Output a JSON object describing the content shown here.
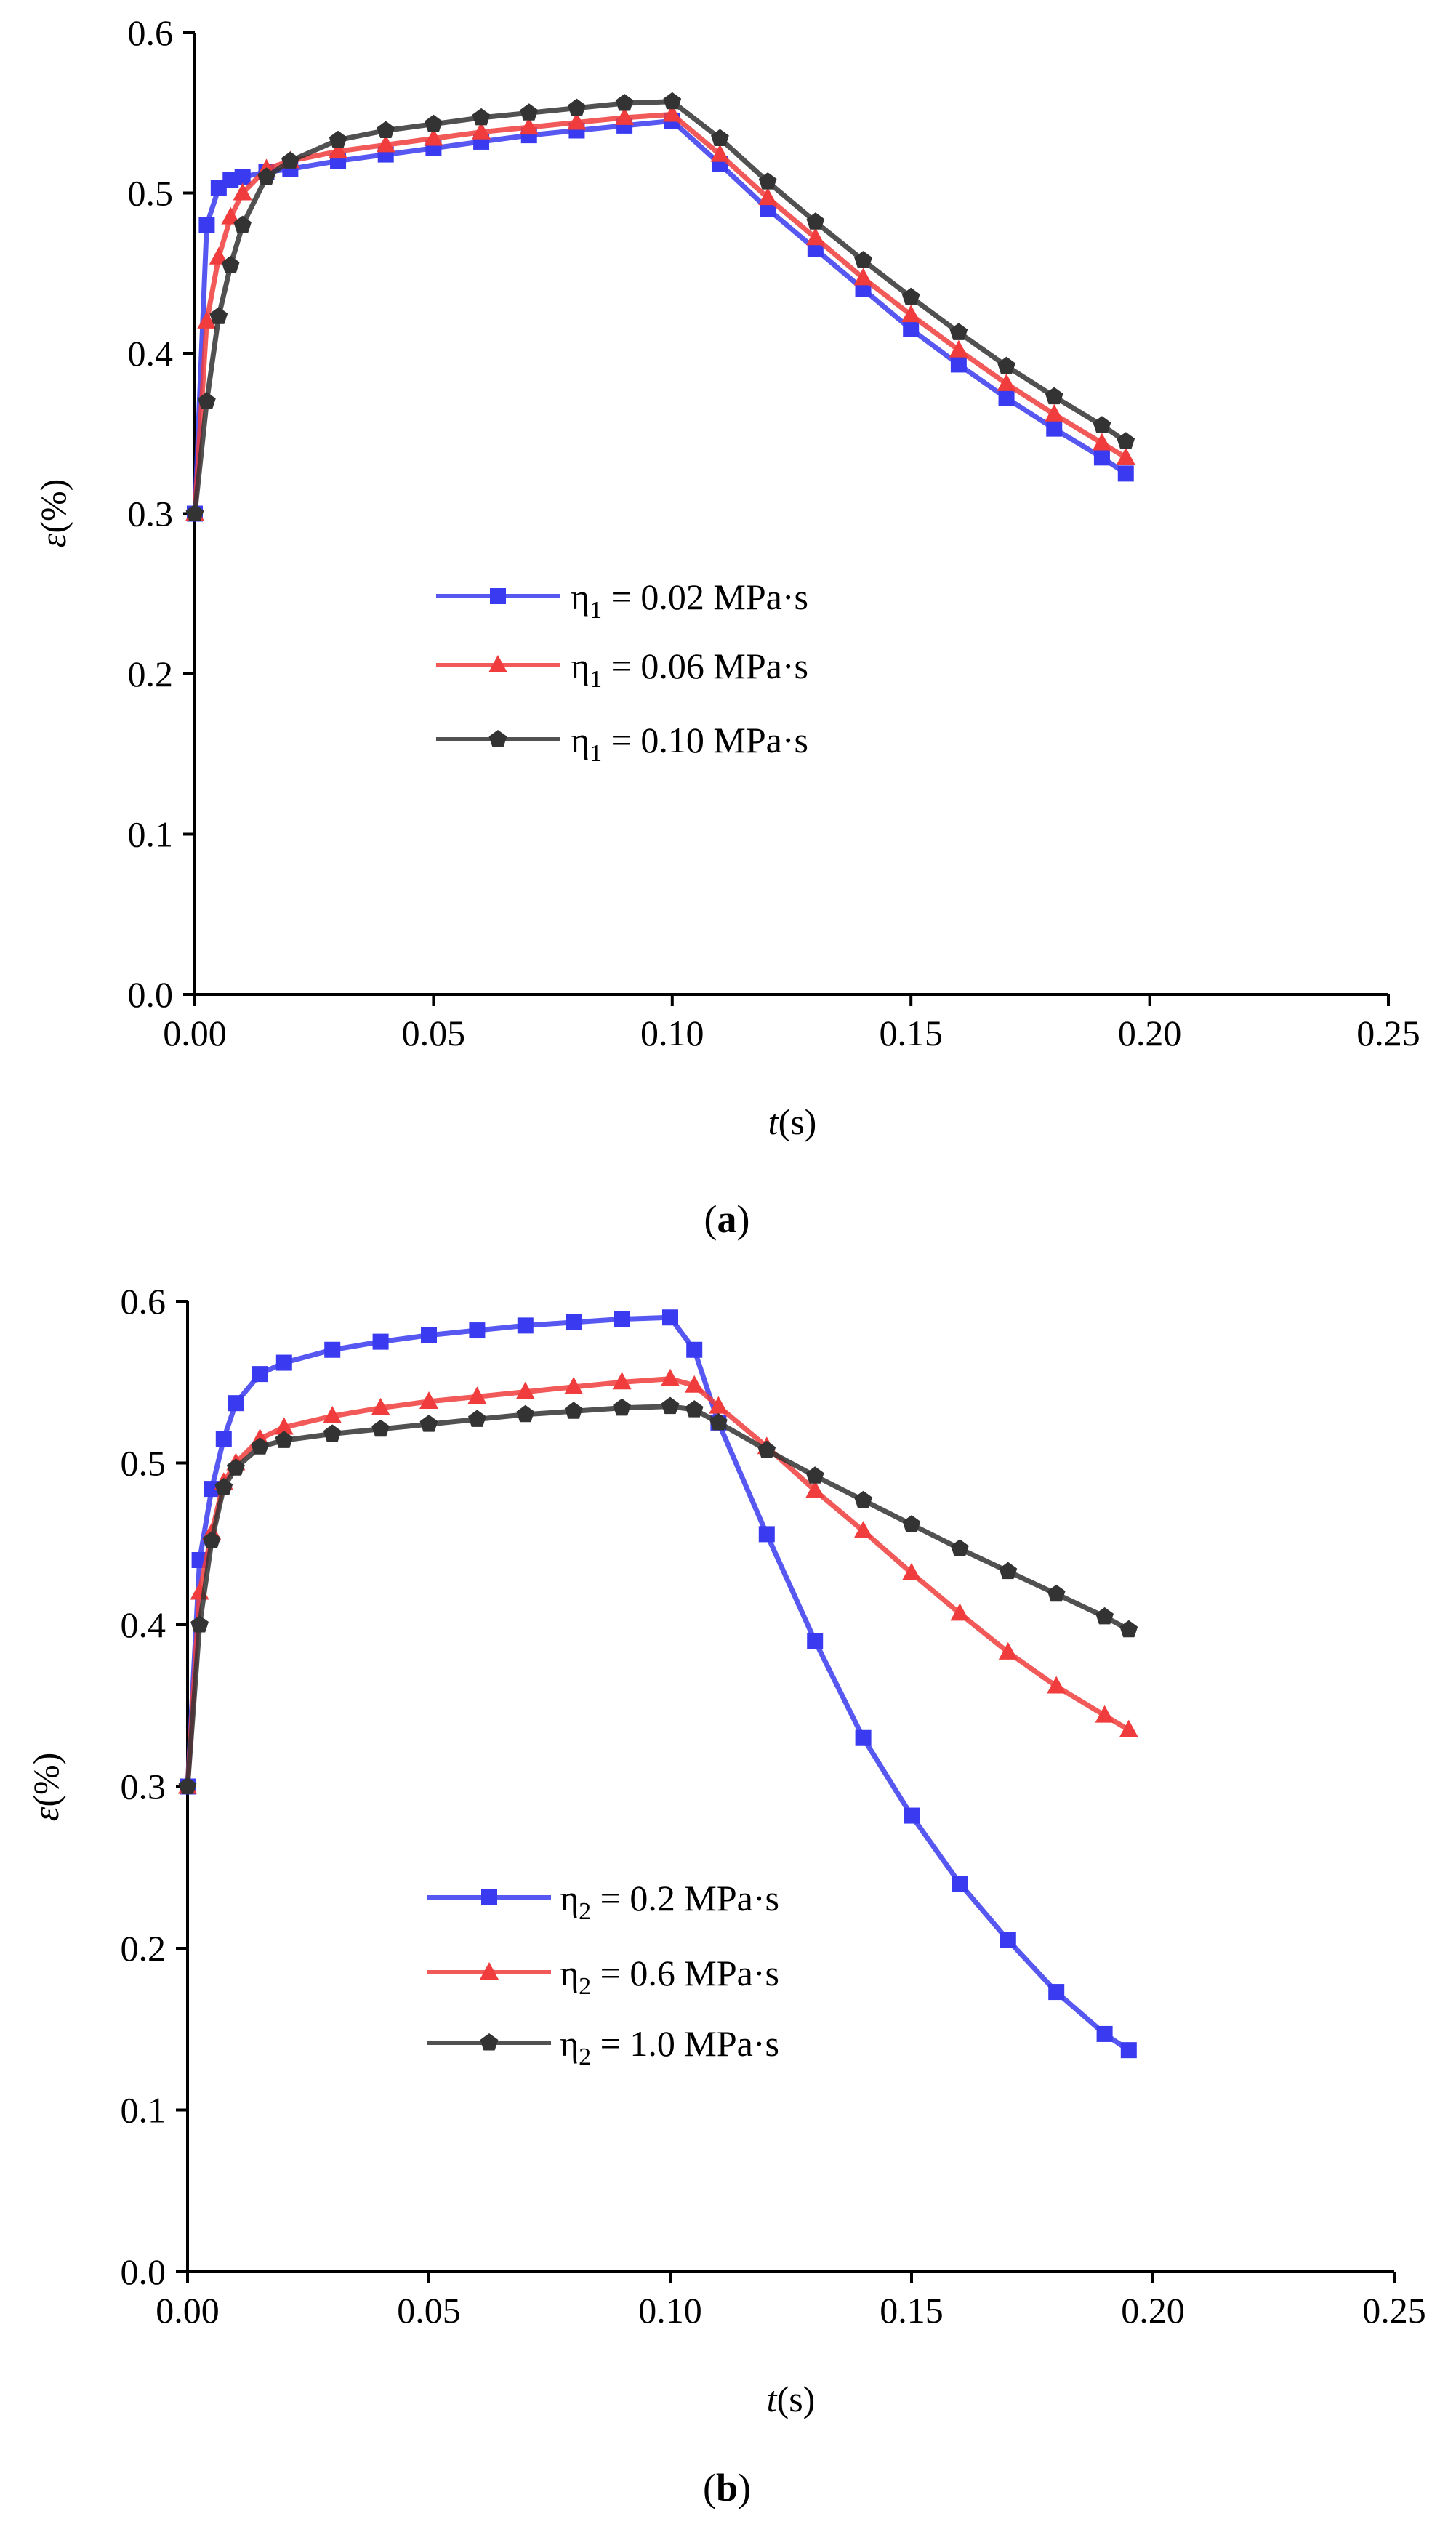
{
  "chart_data": [
    {
      "type": "line",
      "panel_label": "a",
      "xlabel_var": "t",
      "xlabel_unit": "(s)",
      "ylabel_var": "ε",
      "ylabel_unit": "(%)",
      "xlim": [
        0,
        0.25
      ],
      "ylim": [
        0,
        0.6
      ],
      "xticks": [
        "0.00",
        "0.05",
        "0.10",
        "0.15",
        "0.20",
        "0.25"
      ],
      "yticks": [
        "0.0",
        "0.1",
        "0.2",
        "0.3",
        "0.4",
        "0.5",
        "0.6"
      ],
      "legend_position": "center-left",
      "series": [
        {
          "name": "η1 = 0.02 MPa·s",
          "label_symbol": "η",
          "label_sub": "1",
          "label_text": " = 0.02 MPa·s",
          "color": "#3a3af0",
          "marker": "square",
          "x": [
            0,
            0.0025,
            0.005,
            0.0075,
            0.01,
            0.015,
            0.02,
            0.03,
            0.04,
            0.05,
            0.06,
            0.07,
            0.08,
            0.09,
            0.1,
            0.11,
            0.12,
            0.13,
            0.14,
            0.15,
            0.16,
            0.17,
            0.18,
            0.19,
            0.195
          ],
          "y": [
            0.3,
            0.48,
            0.503,
            0.508,
            0.51,
            0.513,
            0.515,
            0.52,
            0.524,
            0.528,
            0.532,
            0.536,
            0.539,
            0.542,
            0.545,
            0.518,
            0.49,
            0.465,
            0.44,
            0.415,
            0.393,
            0.372,
            0.353,
            0.335,
            0.325
          ]
        },
        {
          "name": "η1 = 0.06 MPa·s",
          "label_symbol": "η",
          "label_sub": "1",
          "label_text": " = 0.06 MPa·s",
          "color": "#f03c3c",
          "marker": "triangle",
          "x": [
            0,
            0.0025,
            0.005,
            0.0075,
            0.01,
            0.015,
            0.02,
            0.03,
            0.04,
            0.05,
            0.06,
            0.07,
            0.08,
            0.09,
            0.1,
            0.11,
            0.12,
            0.13,
            0.14,
            0.15,
            0.16,
            0.17,
            0.18,
            0.19,
            0.195
          ],
          "y": [
            0.3,
            0.42,
            0.46,
            0.485,
            0.5,
            0.515,
            0.52,
            0.526,
            0.53,
            0.534,
            0.538,
            0.541,
            0.544,
            0.547,
            0.549,
            0.524,
            0.497,
            0.472,
            0.447,
            0.424,
            0.402,
            0.381,
            0.362,
            0.344,
            0.335
          ]
        },
        {
          "name": "η1 = 0.10 MPa·s",
          "label_symbol": "η",
          "label_sub": "1",
          "label_text": " = 0.10 MPa·s",
          "color": "#333333",
          "marker": "pentagon",
          "x": [
            0,
            0.0025,
            0.005,
            0.0075,
            0.01,
            0.015,
            0.02,
            0.03,
            0.04,
            0.05,
            0.06,
            0.07,
            0.08,
            0.09,
            0.1,
            0.11,
            0.12,
            0.13,
            0.14,
            0.15,
            0.16,
            0.17,
            0.18,
            0.19,
            0.195
          ],
          "y": [
            0.3,
            0.37,
            0.423,
            0.455,
            0.48,
            0.51,
            0.52,
            0.533,
            0.539,
            0.543,
            0.547,
            0.55,
            0.553,
            0.556,
            0.557,
            0.534,
            0.507,
            0.482,
            0.458,
            0.435,
            0.413,
            0.392,
            0.373,
            0.355,
            0.345
          ]
        }
      ]
    },
    {
      "type": "line",
      "panel_label": "b",
      "xlabel_var": "t",
      "xlabel_unit": "(s)",
      "ylabel_var": "ε",
      "ylabel_unit": "(%)",
      "xlim": [
        0,
        0.25
      ],
      "ylim": [
        0,
        0.6
      ],
      "xticks": [
        "0.00",
        "0.05",
        "0.10",
        "0.15",
        "0.20",
        "0.25"
      ],
      "yticks": [
        "0.0",
        "0.1",
        "0.2",
        "0.3",
        "0.4",
        "0.5",
        "0.6"
      ],
      "legend_position": "bottom-left",
      "series": [
        {
          "name": "η2 = 0.2 MPa·s",
          "label_symbol": "η",
          "label_sub": "2",
          "label_text": " = 0.2 MPa·s",
          "color": "#3a3af0",
          "marker": "square",
          "x": [
            0,
            0.0025,
            0.005,
            0.0075,
            0.01,
            0.015,
            0.02,
            0.03,
            0.04,
            0.05,
            0.06,
            0.07,
            0.08,
            0.09,
            0.1,
            0.105,
            0.11,
            0.12,
            0.13,
            0.14,
            0.15,
            0.16,
            0.17,
            0.18,
            0.19,
            0.195
          ],
          "y": [
            0.3,
            0.44,
            0.484,
            0.515,
            0.537,
            0.555,
            0.562,
            0.57,
            0.575,
            0.579,
            0.582,
            0.585,
            0.587,
            0.589,
            0.59,
            0.57,
            0.525,
            0.456,
            0.39,
            0.33,
            0.282,
            0.24,
            0.205,
            0.173,
            0.147,
            0.137
          ]
        },
        {
          "name": "η2 = 0.6 MPa·s",
          "label_symbol": "η",
          "label_sub": "2",
          "label_text": " = 0.6 MPa·s",
          "color": "#f03c3c",
          "marker": "triangle",
          "x": [
            0,
            0.0025,
            0.005,
            0.0075,
            0.01,
            0.015,
            0.02,
            0.03,
            0.04,
            0.05,
            0.06,
            0.07,
            0.08,
            0.09,
            0.1,
            0.105,
            0.11,
            0.12,
            0.13,
            0.14,
            0.15,
            0.16,
            0.17,
            0.18,
            0.19,
            0.195
          ],
          "y": [
            0.3,
            0.42,
            0.457,
            0.488,
            0.5,
            0.515,
            0.522,
            0.529,
            0.534,
            0.538,
            0.541,
            0.544,
            0.547,
            0.55,
            0.552,
            0.548,
            0.535,
            0.51,
            0.483,
            0.458,
            0.432,
            0.407,
            0.383,
            0.362,
            0.344,
            0.335
          ]
        },
        {
          "name": "η2 = 1.0 MPa·s",
          "label_symbol": "η",
          "label_sub": "2",
          "label_text": " = 1.0 MPa·s",
          "color": "#333333",
          "marker": "pentagon",
          "x": [
            0,
            0.0025,
            0.005,
            0.0075,
            0.01,
            0.015,
            0.02,
            0.03,
            0.04,
            0.05,
            0.06,
            0.07,
            0.08,
            0.09,
            0.1,
            0.105,
            0.11,
            0.12,
            0.13,
            0.14,
            0.15,
            0.16,
            0.17,
            0.18,
            0.19,
            0.195
          ],
          "y": [
            0.3,
            0.4,
            0.452,
            0.485,
            0.497,
            0.51,
            0.514,
            0.518,
            0.521,
            0.524,
            0.527,
            0.53,
            0.532,
            0.534,
            0.535,
            0.533,
            0.525,
            0.508,
            0.492,
            0.477,
            0.462,
            0.447,
            0.433,
            0.419,
            0.405,
            0.397
          ]
        }
      ]
    }
  ]
}
